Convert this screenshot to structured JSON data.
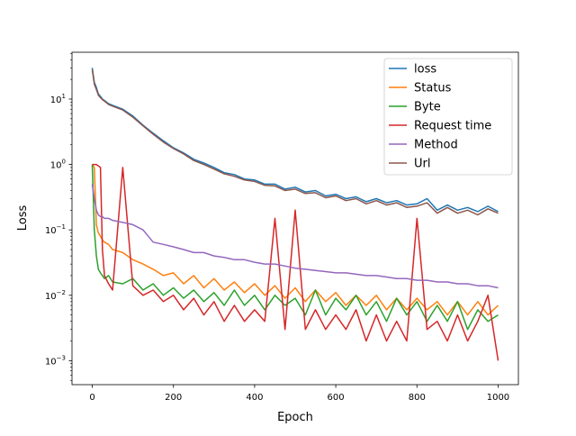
{
  "chart_data": {
    "type": "line",
    "title": "",
    "xlabel": "Epoch",
    "ylabel": "Loss",
    "xlim": [
      -50,
      1050
    ],
    "ylim": [
      0.00043,
      52
    ],
    "yscale": "log",
    "grid": false,
    "legend_position": "top-right",
    "x_ticks": [
      0,
      200,
      400,
      600,
      800,
      1000
    ],
    "x_tick_labels": [
      "0",
      "200",
      "400",
      "600",
      "800",
      "1000"
    ],
    "y_ticks": [
      {
        "value": 0.001,
        "base": "10",
        "exp": "−3"
      },
      {
        "value": 0.01,
        "base": "10",
        "exp": "−2"
      },
      {
        "value": 0.1,
        "base": "10",
        "exp": "−1"
      },
      {
        "value": 1,
        "base": "10",
        "exp": "0"
      },
      {
        "value": 10,
        "base": "10",
        "exp": "1"
      }
    ],
    "x": [
      0,
      5,
      10,
      15,
      20,
      25,
      30,
      40,
      50,
      75,
      100,
      125,
      150,
      175,
      200,
      225,
      250,
      275,
      300,
      325,
      350,
      375,
      400,
      425,
      450,
      475,
      500,
      525,
      550,
      575,
      600,
      625,
      650,
      675,
      700,
      725,
      750,
      775,
      800,
      825,
      850,
      875,
      900,
      925,
      950,
      975,
      1000
    ],
    "series": [
      {
        "name": "loss",
        "color": "#1f77b4",
        "values": [
          30,
          18,
          15,
          12,
          11,
          10,
          9.5,
          8.5,
          8,
          7,
          5.5,
          4,
          3,
          2.3,
          1.8,
          1.5,
          1.2,
          1.05,
          0.9,
          0.75,
          0.7,
          0.6,
          0.58,
          0.5,
          0.5,
          0.42,
          0.45,
          0.38,
          0.4,
          0.33,
          0.35,
          0.3,
          0.32,
          0.27,
          0.3,
          0.26,
          0.28,
          0.24,
          0.25,
          0.3,
          0.2,
          0.24,
          0.2,
          0.22,
          0.19,
          0.23,
          0.19
        ]
      },
      {
        "name": "Status",
        "color": "#ff7f0e",
        "values": [
          1.0,
          0.9,
          0.12,
          0.09,
          0.08,
          0.07,
          0.065,
          0.06,
          0.05,
          0.045,
          0.035,
          0.03,
          0.025,
          0.02,
          0.022,
          0.015,
          0.02,
          0.013,
          0.018,
          0.012,
          0.016,
          0.011,
          0.015,
          0.01,
          0.014,
          0.009,
          0.013,
          0.008,
          0.012,
          0.008,
          0.011,
          0.007,
          0.01,
          0.007,
          0.01,
          0.006,
          0.009,
          0.006,
          0.009,
          0.006,
          0.008,
          0.005,
          0.008,
          0.005,
          0.008,
          0.005,
          0.007
        ]
      },
      {
        "name": "Byte",
        "color": "#2ca02c",
        "values": [
          1.0,
          0.1,
          0.04,
          0.025,
          0.022,
          0.02,
          0.018,
          0.02,
          0.016,
          0.015,
          0.018,
          0.012,
          0.015,
          0.01,
          0.013,
          0.009,
          0.012,
          0.008,
          0.011,
          0.007,
          0.012,
          0.007,
          0.01,
          0.006,
          0.01,
          0.007,
          0.009,
          0.005,
          0.012,
          0.005,
          0.009,
          0.006,
          0.01,
          0.005,
          0.008,
          0.004,
          0.009,
          0.005,
          0.008,
          0.004,
          0.007,
          0.004,
          0.008,
          0.003,
          0.006,
          0.004,
          0.005
        ]
      },
      {
        "name": "Request time",
        "color": "#d62728",
        "values": [
          1.0,
          1.0,
          1.0,
          0.95,
          0.9,
          0.05,
          0.02,
          0.015,
          0.012,
          0.9,
          0.014,
          0.01,
          0.012,
          0.008,
          0.01,
          0.006,
          0.009,
          0.005,
          0.008,
          0.004,
          0.007,
          0.004,
          0.006,
          0.004,
          0.15,
          0.003,
          0.2,
          0.003,
          0.006,
          0.003,
          0.005,
          0.003,
          0.006,
          0.002,
          0.005,
          0.002,
          0.004,
          0.002,
          0.15,
          0.003,
          0.004,
          0.002,
          0.005,
          0.002,
          0.004,
          0.01,
          0.001
        ]
      },
      {
        "name": "Method",
        "color": "#9467bd",
        "values": [
          0.5,
          0.3,
          0.2,
          0.17,
          0.16,
          0.16,
          0.15,
          0.15,
          0.14,
          0.13,
          0.12,
          0.1,
          0.065,
          0.06,
          0.055,
          0.05,
          0.045,
          0.045,
          0.04,
          0.038,
          0.035,
          0.035,
          0.032,
          0.03,
          0.03,
          0.028,
          0.026,
          0.025,
          0.024,
          0.023,
          0.022,
          0.022,
          0.021,
          0.02,
          0.02,
          0.019,
          0.018,
          0.018,
          0.017,
          0.017,
          0.016,
          0.016,
          0.015,
          0.015,
          0.014,
          0.014,
          0.013
        ]
      },
      {
        "name": "Url",
        "color": "#8c564b",
        "values": [
          28,
          17,
          14,
          11.5,
          10.5,
          9.8,
          9.3,
          8.3,
          7.8,
          6.8,
          5.3,
          3.9,
          2.9,
          2.2,
          1.75,
          1.45,
          1.15,
          1.0,
          0.85,
          0.72,
          0.66,
          0.58,
          0.55,
          0.48,
          0.47,
          0.4,
          0.42,
          0.36,
          0.37,
          0.31,
          0.33,
          0.28,
          0.3,
          0.25,
          0.28,
          0.24,
          0.26,
          0.22,
          0.23,
          0.26,
          0.18,
          0.22,
          0.18,
          0.2,
          0.17,
          0.21,
          0.18
        ]
      }
    ]
  }
}
